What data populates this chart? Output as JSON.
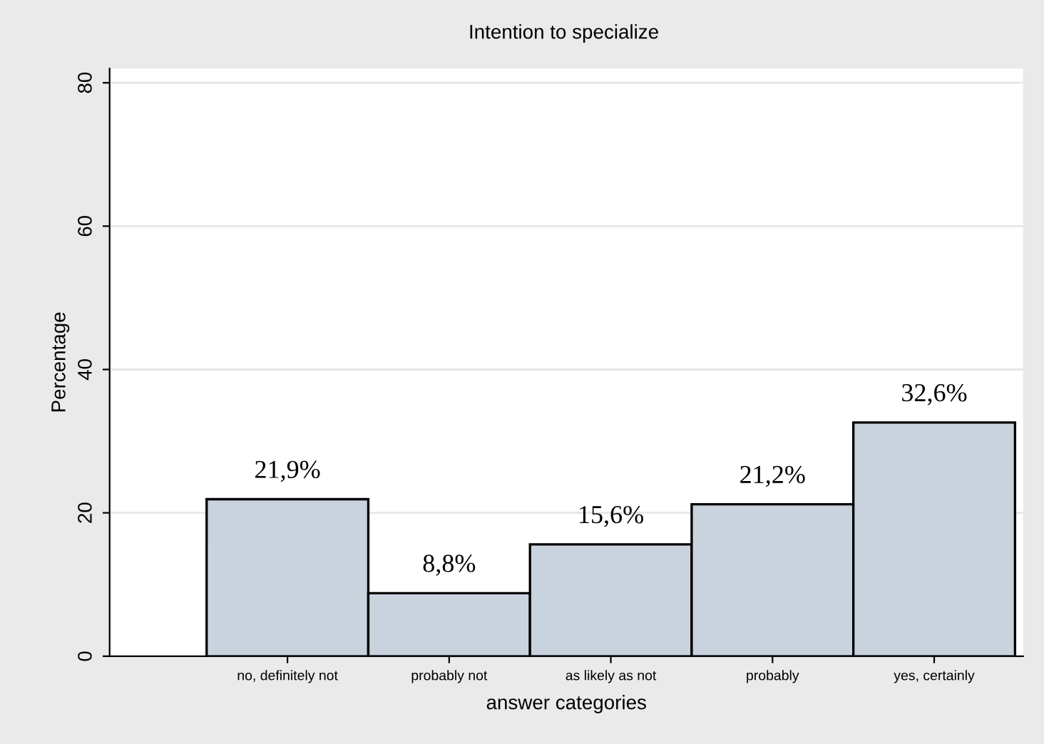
{
  "chart_data": {
    "type": "bar",
    "title": "Intention to specialize",
    "xlabel": "answer categories",
    "ylabel": "Percentage",
    "categories": [
      "no, definitely not",
      "probably not",
      "as likely as not",
      "probably",
      "yes, certainly"
    ],
    "values": [
      21.9,
      8.8,
      15.6,
      21.2,
      32.6
    ],
    "value_labels": [
      "21,9%",
      "8,8%",
      "15,6%",
      "21,2%",
      "32,6%"
    ],
    "color": "#c8d3de",
    "ylim": [
      0,
      82
    ],
    "yticks": [
      0,
      20,
      40,
      60,
      80
    ],
    "grid": "y"
  }
}
